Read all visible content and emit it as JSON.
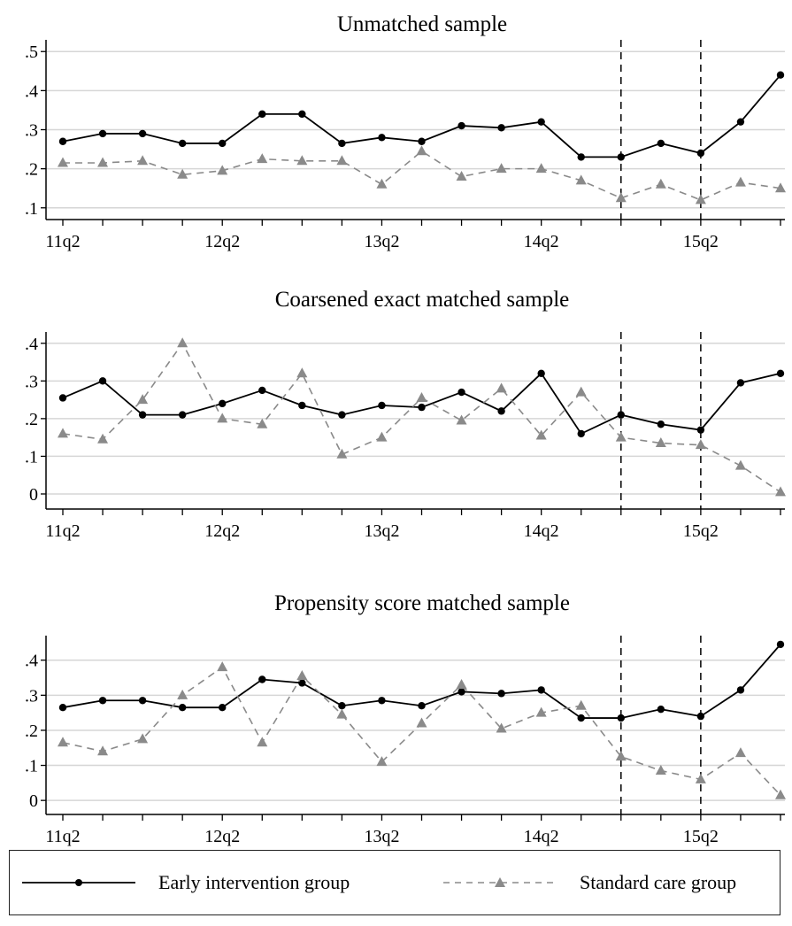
{
  "chart_data": [
    {
      "type": "line",
      "title": "Unmatched sample",
      "xlabel": "",
      "ylabel": "",
      "x": [
        "11q2",
        "11q3",
        "11q4",
        "12q1",
        "12q2",
        "12q3",
        "12q4",
        "13q1",
        "13q2",
        "13q3",
        "13q4",
        "14q1",
        "14q2",
        "14q3",
        "14q4",
        "15q1",
        "15q2",
        "15q3",
        "15q4"
      ],
      "x_tick_labels": [
        "11q2",
        "12q2",
        "13q2",
        "14q2",
        "15q2"
      ],
      "ylim": [
        0.07,
        0.53
      ],
      "y_ticks": [
        0.1,
        0.2,
        0.3,
        0.4,
        0.5
      ],
      "y_tick_labels": [
        ".1",
        ".2",
        ".3",
        ".4",
        ".5"
      ],
      "vertical_reference_lines": [
        "14q4",
        "15q2"
      ],
      "grid": true,
      "series": [
        {
          "name": "Early intervention group",
          "style": "solid",
          "marker": "circle",
          "color": "#000000",
          "values": [
            0.27,
            0.29,
            0.29,
            0.265,
            0.265,
            0.34,
            0.34,
            0.265,
            0.28,
            0.27,
            0.31,
            0.305,
            0.32,
            0.23,
            0.23,
            0.265,
            0.24,
            0.32,
            0.44
          ]
        },
        {
          "name": "Standard care group",
          "style": "dashed",
          "marker": "triangle",
          "color": "#8a8a8a",
          "values": [
            0.215,
            0.215,
            0.22,
            0.185,
            0.195,
            0.225,
            0.22,
            0.22,
            0.16,
            0.245,
            0.18,
            0.2,
            0.2,
            0.17,
            0.125,
            0.16,
            0.12,
            0.165,
            0.15
          ]
        }
      ]
    },
    {
      "type": "line",
      "title": "Coarsened exact matched sample",
      "xlabel": "",
      "ylabel": "",
      "x": [
        "11q2",
        "11q3",
        "11q4",
        "12q1",
        "12q2",
        "12q3",
        "12q4",
        "13q1",
        "13q2",
        "13q3",
        "13q4",
        "14q1",
        "14q2",
        "14q3",
        "14q4",
        "15q1",
        "15q2",
        "15q3",
        "15q4"
      ],
      "x_tick_labels": [
        "11q2",
        "12q2",
        "13q2",
        "14q2",
        "15q2"
      ],
      "ylim": [
        -0.04,
        0.43
      ],
      "y_ticks": [
        0,
        0.1,
        0.2,
        0.3,
        0.4
      ],
      "y_tick_labels": [
        "0",
        ".1",
        ".2",
        ".3",
        ".4"
      ],
      "vertical_reference_lines": [
        "14q4",
        "15q2"
      ],
      "grid": true,
      "series": [
        {
          "name": "Early intervention group",
          "style": "solid",
          "marker": "circle",
          "color": "#000000",
          "values": [
            0.255,
            0.3,
            0.21,
            0.21,
            0.24,
            0.275,
            0.235,
            0.21,
            0.235,
            0.23,
            0.27,
            0.22,
            0.32,
            0.16,
            0.21,
            0.185,
            0.17,
            0.295,
            0.32
          ]
        },
        {
          "name": "Standard care group",
          "style": "dashed",
          "marker": "triangle",
          "color": "#8a8a8a",
          "values": [
            0.16,
            0.145,
            0.25,
            0.4,
            0.2,
            0.185,
            0.32,
            0.105,
            0.15,
            0.255,
            0.195,
            0.28,
            0.155,
            0.27,
            0.15,
            0.135,
            0.13,
            0.075,
            0.005
          ]
        }
      ]
    },
    {
      "type": "line",
      "title": "Propensity score matched sample",
      "xlabel": "",
      "ylabel": "",
      "x": [
        "11q2",
        "11q3",
        "11q4",
        "12q1",
        "12q2",
        "12q3",
        "12q4",
        "13q1",
        "13q2",
        "13q3",
        "13q4",
        "14q1",
        "14q2",
        "14q3",
        "14q4",
        "15q1",
        "15q2",
        "15q3",
        "15q4"
      ],
      "x_tick_labels": [
        "11q2",
        "12q2",
        "13q2",
        "14q2",
        "15q2"
      ],
      "ylim": [
        -0.04,
        0.47
      ],
      "y_ticks": [
        0,
        0.1,
        0.2,
        0.3,
        0.4
      ],
      "y_tick_labels": [
        "0",
        ".1",
        ".2",
        ".3",
        ".4"
      ],
      "vertical_reference_lines": [
        "14q4",
        "15q2"
      ],
      "grid": true,
      "series": [
        {
          "name": "Early intervention group",
          "style": "solid",
          "marker": "circle",
          "color": "#000000",
          "values": [
            0.265,
            0.285,
            0.285,
            0.265,
            0.265,
            0.345,
            0.335,
            0.27,
            0.285,
            0.27,
            0.31,
            0.305,
            0.315,
            0.235,
            0.235,
            0.26,
            0.24,
            0.315,
            0.445
          ]
        },
        {
          "name": "Standard care group",
          "style": "dashed",
          "marker": "triangle",
          "color": "#8a8a8a",
          "values": [
            0.165,
            0.14,
            0.175,
            0.3,
            0.38,
            0.165,
            0.355,
            0.245,
            0.11,
            0.22,
            0.33,
            0.205,
            0.25,
            0.27,
            0.125,
            0.085,
            0.06,
            0.135,
            0.015
          ]
        }
      ]
    }
  ],
  "legend": {
    "placement": "bottom",
    "items": [
      {
        "label": "Early intervention group",
        "style": "solid",
        "marker": "circle",
        "color": "#000000"
      },
      {
        "label": "Standard care group",
        "style": "dashed",
        "marker": "triangle",
        "color": "#8a8a8a"
      }
    ]
  }
}
